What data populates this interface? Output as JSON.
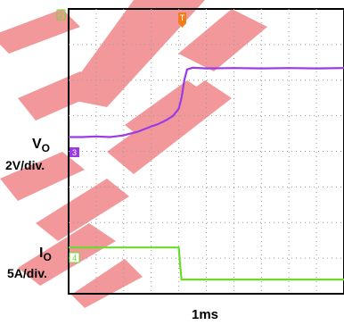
{
  "chart_data": {
    "type": "line",
    "timebase": "1ms",
    "channel_markers": {
      "top": "2",
      "vo": "3",
      "io": "4",
      "trigger": "T"
    },
    "series": [
      {
        "name": "VO",
        "label_main": "V",
        "label_sub": "O",
        "scale": "2V/div.",
        "color": "#9b3be6",
        "x": [
          0,
          0.5,
          1.0,
          1.5,
          2.0,
          2.5,
          3.0,
          3.2,
          3.4,
          3.6,
          3.8,
          4.0,
          4.1,
          4.2,
          4.3,
          4.5,
          5.0,
          6.0,
          7.0,
          8.0,
          9.0,
          10.0
        ],
        "y": [
          4.4,
          4.4,
          4.42,
          4.4,
          4.45,
          4.55,
          4.7,
          4.75,
          4.82,
          4.9,
          5.0,
          5.2,
          5.5,
          6.0,
          6.3,
          6.35,
          6.33,
          6.34,
          6.33,
          6.34,
          6.33,
          6.34
        ]
      },
      {
        "name": "IO",
        "label_main": "I",
        "label_sub": "O",
        "scale": "5A/div.",
        "color": "#6bdb2b",
        "x": [
          0,
          1.0,
          2.0,
          3.0,
          4.0,
          4.05,
          4.1,
          5.0,
          6.0,
          7.0,
          8.0,
          9.0,
          10.0
        ],
        "y": [
          1.3,
          1.3,
          1.3,
          1.3,
          1.3,
          0.8,
          0.4,
          0.4,
          0.4,
          0.4,
          0.4,
          0.4,
          0.4
        ]
      }
    ],
    "grid": true,
    "xlim": [
      0,
      10
    ],
    "ylim": [
      0,
      8
    ]
  }
}
